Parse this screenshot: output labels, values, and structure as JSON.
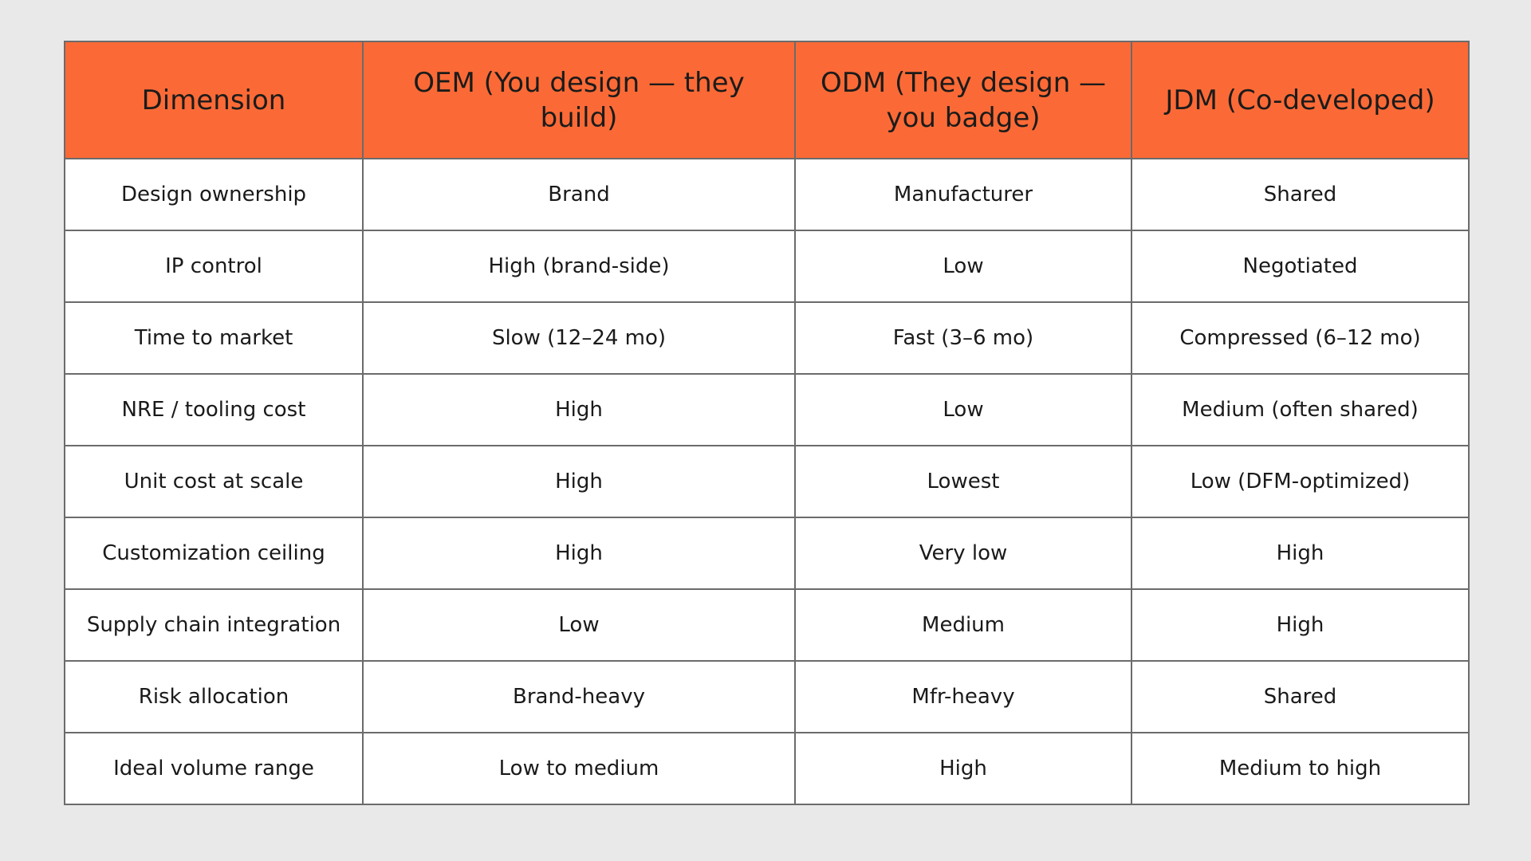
{
  "table": {
    "headers": [
      "Dimension",
      "OEM (You design — they build)",
      "ODM (They design — you badge)",
      "JDM (Co-developed)"
    ],
    "rows": [
      [
        "Design ownership",
        "Brand",
        "Manufacturer",
        "Shared"
      ],
      [
        "IP control",
        "High (brand-side)",
        "Low",
        "Negotiated"
      ],
      [
        "Time to market",
        "Slow (12–24 mo)",
        "Fast (3–6 mo)",
        "Compressed (6–12 mo)"
      ],
      [
        "NRE / tooling cost",
        "High",
        "Low",
        "Medium (often shared)"
      ],
      [
        "Unit cost at scale",
        "High",
        "Lowest",
        "Low (DFM-optimized)"
      ],
      [
        "Customization ceiling",
        "High",
        "Very low",
        "High"
      ],
      [
        "Supply chain integration",
        "Low",
        "Medium",
        "High"
      ],
      [
        "Risk allocation",
        "Brand-heavy",
        "Mfr-heavy",
        "Shared"
      ],
      [
        "Ideal volume range",
        "Low to medium",
        "High",
        "Medium to high"
      ]
    ]
  },
  "colors": {
    "header_background": "#fb6a36",
    "page_background": "#e8e9e8",
    "border": "#6b6b6b"
  }
}
